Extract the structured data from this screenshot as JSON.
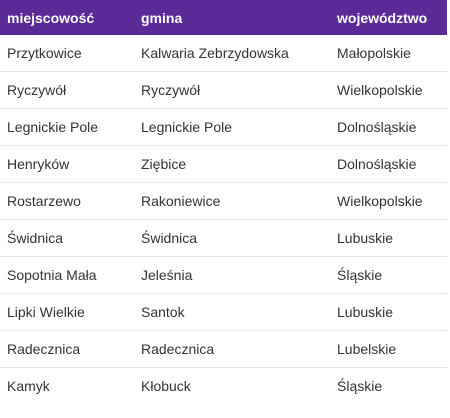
{
  "table": {
    "headers": [
      "miejscowość",
      "gmina",
      "województwo"
    ],
    "rows": [
      [
        "Przytkowice",
        "Kalwaria Zebrzydowska",
        "Małopolskie"
      ],
      [
        "Ryczywół",
        "Ryczywół",
        "Wielkopolskie"
      ],
      [
        "Legnickie Pole",
        "Legnickie Pole",
        "Dolnośląskie"
      ],
      [
        "Henryków",
        "Ziębice",
        "Dolnośląskie"
      ],
      [
        "Rostarzewo",
        "Rakoniewice",
        "Wielkopolskie"
      ],
      [
        "Świdnica",
        "Świdnica",
        "Lubuskie"
      ],
      [
        "Sopotnia Mała",
        "Jeleśnia",
        "Śląskie"
      ],
      [
        "Lipki Wielkie",
        "Santok",
        "Lubuskie"
      ],
      [
        "Radecznica",
        "Radecznica",
        "Lubelskie"
      ],
      [
        "Kamyk",
        "Kłobuck",
        "Śląskie"
      ]
    ]
  },
  "colors": {
    "header_bg": "#5a2b97",
    "header_text": "#ffffff",
    "row_divider": "#e6e6e6"
  }
}
